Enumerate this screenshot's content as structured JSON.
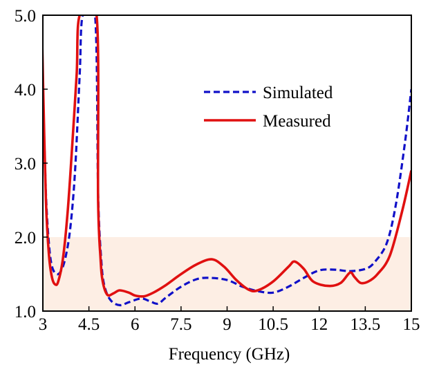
{
  "chart_data": {
    "type": "line",
    "title": "",
    "xlabel": "Frequency (GHz)",
    "ylabel": "",
    "xlim": [
      3,
      15
    ],
    "ylim": [
      1.0,
      5.0
    ],
    "xticks": [
      "3",
      "4.5",
      "6",
      "7.5",
      "9",
      "10.5",
      "12",
      "13.5",
      "15"
    ],
    "yticks": [
      "1.0",
      "2.0",
      "3.0",
      "4.0",
      "5.0"
    ],
    "grid": false,
    "legend_position": "top-right",
    "shaded_region": {
      "y_from": 1.0,
      "y_to": 2.0,
      "color": "#fdeee4"
    },
    "series": [
      {
        "name": "Simulated",
        "color": "#1010c8",
        "dash": true,
        "points": [
          [
            2.93,
            5.0
          ],
          [
            3.0,
            4.0
          ],
          [
            3.1,
            2.6
          ],
          [
            3.2,
            1.9
          ],
          [
            3.3,
            1.6
          ],
          [
            3.45,
            1.5
          ],
          [
            3.6,
            1.55
          ],
          [
            3.75,
            1.75
          ],
          [
            3.9,
            2.15
          ],
          [
            4.05,
            2.9
          ],
          [
            4.2,
            4.2
          ],
          [
            4.3,
            5.0
          ],
          [
            4.7,
            5.0
          ],
          [
            4.8,
            2.6
          ],
          [
            4.9,
            1.7
          ],
          [
            5.0,
            1.35
          ],
          [
            5.2,
            1.15
          ],
          [
            5.5,
            1.08
          ],
          [
            5.8,
            1.12
          ],
          [
            6.2,
            1.17
          ],
          [
            6.5,
            1.13
          ],
          [
            6.75,
            1.1
          ],
          [
            7.0,
            1.18
          ],
          [
            7.5,
            1.33
          ],
          [
            8.0,
            1.43
          ],
          [
            8.4,
            1.45
          ],
          [
            9.0,
            1.42
          ],
          [
            9.5,
            1.33
          ],
          [
            10.0,
            1.27
          ],
          [
            10.5,
            1.25
          ],
          [
            11.0,
            1.33
          ],
          [
            11.5,
            1.45
          ],
          [
            12.0,
            1.55
          ],
          [
            12.5,
            1.56
          ],
          [
            13.0,
            1.54
          ],
          [
            13.5,
            1.57
          ],
          [
            13.8,
            1.66
          ],
          [
            14.2,
            1.92
          ],
          [
            14.5,
            2.45
          ],
          [
            14.8,
            3.3
          ],
          [
            15.0,
            4.0
          ]
        ]
      },
      {
        "name": "Measured",
        "color": "#e01010",
        "dash": false,
        "points": [
          [
            2.96,
            5.0
          ],
          [
            3.0,
            4.2
          ],
          [
            3.1,
            2.5
          ],
          [
            3.2,
            1.75
          ],
          [
            3.3,
            1.45
          ],
          [
            3.4,
            1.36
          ],
          [
            3.5,
            1.4
          ],
          [
            3.65,
            1.7
          ],
          [
            3.8,
            2.3
          ],
          [
            3.95,
            3.2
          ],
          [
            4.1,
            4.2
          ],
          [
            4.2,
            5.0
          ],
          [
            4.75,
            5.0
          ],
          [
            4.8,
            2.5
          ],
          [
            4.88,
            1.7
          ],
          [
            4.95,
            1.4
          ],
          [
            5.1,
            1.22
          ],
          [
            5.3,
            1.24
          ],
          [
            5.5,
            1.28
          ],
          [
            5.8,
            1.25
          ],
          [
            6.0,
            1.21
          ],
          [
            6.3,
            1.2
          ],
          [
            6.6,
            1.25
          ],
          [
            7.0,
            1.35
          ],
          [
            7.5,
            1.5
          ],
          [
            8.0,
            1.63
          ],
          [
            8.5,
            1.7
          ],
          [
            8.9,
            1.6
          ],
          [
            9.3,
            1.42
          ],
          [
            9.7,
            1.29
          ],
          [
            10.0,
            1.28
          ],
          [
            10.5,
            1.4
          ],
          [
            11.0,
            1.6
          ],
          [
            11.2,
            1.67
          ],
          [
            11.5,
            1.57
          ],
          [
            11.8,
            1.4
          ],
          [
            12.3,
            1.34
          ],
          [
            12.7,
            1.38
          ],
          [
            13.0,
            1.52
          ],
          [
            13.15,
            1.46
          ],
          [
            13.35,
            1.38
          ],
          [
            13.6,
            1.4
          ],
          [
            13.9,
            1.5
          ],
          [
            14.3,
            1.75
          ],
          [
            14.7,
            2.35
          ],
          [
            15.0,
            2.9
          ]
        ]
      }
    ]
  }
}
